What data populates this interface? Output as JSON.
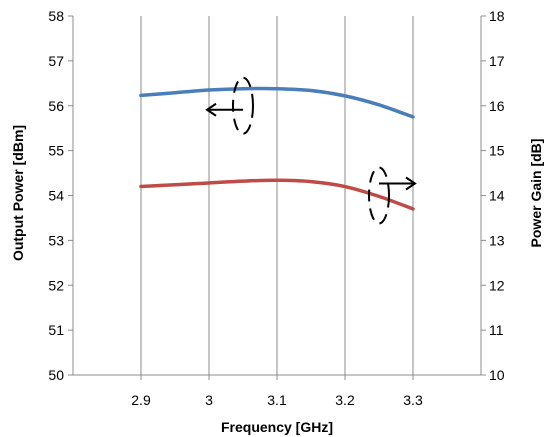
{
  "chart_data": {
    "type": "line",
    "xlabel": "Frequency [GHz]",
    "ylabel_left": "Output Power [dBm]",
    "ylabel_right": "Power Gain [dB]",
    "xlim": [
      2.8,
      3.4
    ],
    "ylim_left": [
      50,
      58
    ],
    "ylim_right": [
      10,
      18
    ],
    "x_ticks": [
      "2.9",
      "3",
      "3.1",
      "3.2",
      "3.3"
    ],
    "y_left_ticks": [
      "50",
      "51",
      "52",
      "53",
      "54",
      "55",
      "56",
      "57",
      "58"
    ],
    "y_right_ticks": [
      "10",
      "11",
      "12",
      "13",
      "14",
      "15",
      "16",
      "17",
      "18"
    ],
    "grid": "vertical",
    "series": [
      {
        "axis": "left",
        "color": "#4a7ebb",
        "x": [
          2.9,
          2.95,
          3.0,
          3.05,
          3.1,
          3.15,
          3.2,
          3.25,
          3.3
        ],
        "y": [
          56.23,
          56.29,
          56.35,
          56.38,
          56.38,
          56.34,
          56.22,
          56.02,
          55.75
        ]
      },
      {
        "axis": "right",
        "color": "#be4b48",
        "x": [
          2.9,
          2.95,
          3.0,
          3.05,
          3.1,
          3.15,
          3.2,
          3.25,
          3.3
        ],
        "y": [
          14.2,
          14.24,
          14.28,
          14.32,
          14.34,
          14.31,
          14.2,
          13.98,
          13.7
        ]
      }
    ],
    "annotations": [
      {
        "axis": "left",
        "direction": "left",
        "x": 3.05,
        "y": 56.0
      },
      {
        "axis": "right",
        "direction": "right",
        "x": 3.25,
        "y": 14.0
      }
    ]
  }
}
